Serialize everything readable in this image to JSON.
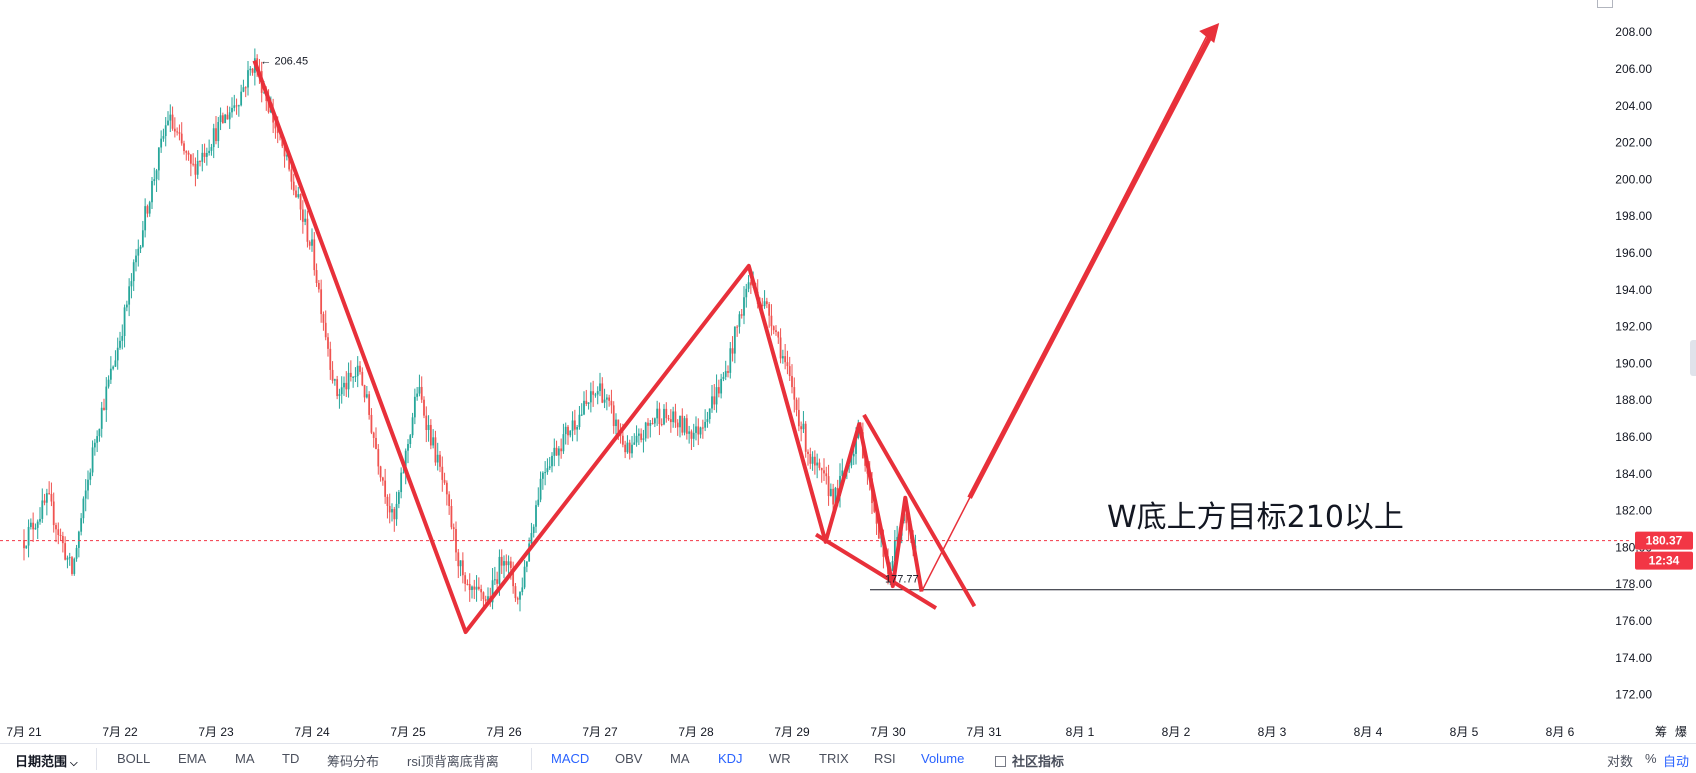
{
  "chart_data": {
    "type": "candlestick",
    "x_ticks": [
      "7月 21",
      "7月 22",
      "7月 23",
      "7月 24",
      "7月 25",
      "7月 26",
      "7月 27",
      "7月 28",
      "7月 29",
      "7月 30",
      "7月 31",
      "8月 1",
      "8月 2",
      "8月 3",
      "8月 4",
      "8月 5",
      "8月 6"
    ],
    "y_ticks": [
      "172.00",
      "174.00",
      "176.00",
      "178.00",
      "180.00",
      "182.00",
      "184.00",
      "186.00",
      "188.00",
      "190.00",
      "192.00",
      "194.00",
      "196.00",
      "198.00",
      "200.00",
      "202.00",
      "204.00",
      "206.00",
      "208.00"
    ],
    "ylim": [
      171.0,
      209.0
    ],
    "price_path": [
      {
        "x": 0.0,
        "y": 180.4
      },
      {
        "x": 0.25,
        "y": 182.6
      },
      {
        "x": 0.5,
        "y": 178.6
      },
      {
        "x": 0.75,
        "y": 186.2
      },
      {
        "x": 1.0,
        "y": 191.4
      },
      {
        "x": 1.25,
        "y": 197.8
      },
      {
        "x": 1.5,
        "y": 203.4
      },
      {
        "x": 1.75,
        "y": 200.5
      },
      {
        "x": 2.0,
        "y": 202.6
      },
      {
        "x": 2.25,
        "y": 204.6
      },
      {
        "x": 2.4,
        "y": 206.45
      },
      {
        "x": 2.6,
        "y": 203.2
      },
      {
        "x": 3.0,
        "y": 196.2
      },
      {
        "x": 3.25,
        "y": 188.3
      },
      {
        "x": 3.5,
        "y": 189.6
      },
      {
        "x": 3.7,
        "y": 184.6
      },
      {
        "x": 3.85,
        "y": 181.2
      },
      {
        "x": 4.1,
        "y": 188.7
      },
      {
        "x": 4.35,
        "y": 183.8
      },
      {
        "x": 4.6,
        "y": 177.5
      },
      {
        "x": 4.85,
        "y": 177.2
      },
      {
        "x": 5.0,
        "y": 179.8
      },
      {
        "x": 5.15,
        "y": 177.0
      },
      {
        "x": 5.4,
        "y": 184.2
      },
      {
        "x": 5.7,
        "y": 186.6
      },
      {
        "x": 6.0,
        "y": 188.7
      },
      {
        "x": 6.3,
        "y": 185.0
      },
      {
        "x": 6.6,
        "y": 187.3
      },
      {
        "x": 7.0,
        "y": 186.2
      },
      {
        "x": 7.3,
        "y": 189.3
      },
      {
        "x": 7.55,
        "y": 194.5
      },
      {
        "x": 7.8,
        "y": 192.4
      },
      {
        "x": 8.0,
        "y": 188.5
      },
      {
        "x": 8.2,
        "y": 184.6
      },
      {
        "x": 8.45,
        "y": 182.7
      },
      {
        "x": 8.7,
        "y": 186.4
      },
      {
        "x": 8.85,
        "y": 182.3
      },
      {
        "x": 9.0,
        "y": 178.4
      },
      {
        "x": 9.15,
        "y": 181.7
      },
      {
        "x": 9.3,
        "y": 179.5
      }
    ],
    "last_price": "180.37",
    "countdown": "12:34",
    "high_marker": {
      "label": "← 206.45",
      "x": 2.4,
      "y": 206.45
    },
    "low_marker": {
      "label": "177.77",
      "x": 9.0,
      "y": 177.77
    },
    "support_line": 177.7,
    "annotation": "W底上方目标210以上",
    "colors": {
      "up": "#26a69a",
      "down": "#ef5350",
      "drawing": "#e8303a",
      "price_line": "#f23645",
      "support": "#131722"
    }
  },
  "toolbar": {
    "date_range": "日期范围",
    "left_indicators": [
      "BOLL",
      "EMA",
      "MA",
      "TD",
      "筹码分布",
      "rsi顶背离底背离"
    ],
    "right_indicators": [
      "MACD",
      "OBV",
      "MA",
      "KDJ",
      "WR",
      "TRIX",
      "RSI",
      "Volume"
    ],
    "community": "社区指标",
    "right_options": [
      "对数",
      "%",
      "自动"
    ]
  },
  "axis_corner": [
    "筹",
    "爆"
  ]
}
